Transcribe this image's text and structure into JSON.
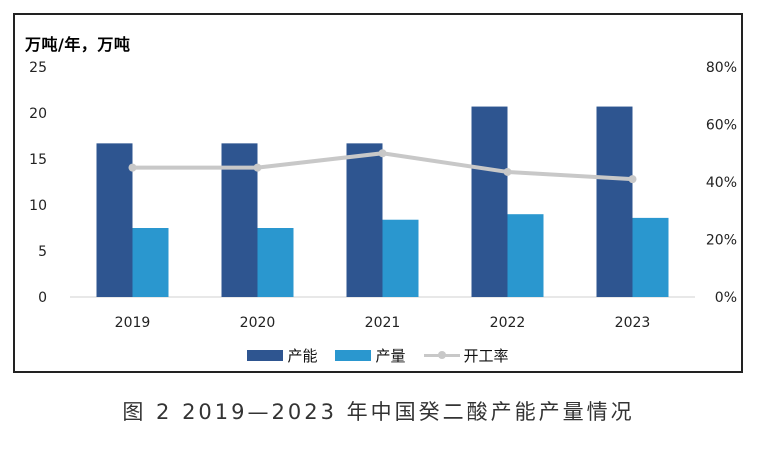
{
  "caption": "图 2  2019—2023 年中国癸二酸产能产量情况",
  "chart_data": {
    "type": "bar",
    "unit_label": "万吨/年，万吨",
    "categories": [
      "2019",
      "2020",
      "2021",
      "2022",
      "2023"
    ],
    "ylim": [
      0,
      25
    ],
    "y_ticks": [
      "0",
      "5",
      "10",
      "15",
      "20",
      "25"
    ],
    "y2lim": [
      0,
      80
    ],
    "y2_ticks": [
      "0%",
      "20%",
      "40%",
      "60%",
      "80%"
    ],
    "grid": false,
    "legend_position": "bottom",
    "series": [
      {
        "name": "产能",
        "type": "bar",
        "axis": "left",
        "color": "#2e5590",
        "values": [
          16.7,
          16.7,
          16.7,
          20.7,
          20.7
        ]
      },
      {
        "name": "产量",
        "type": "bar",
        "axis": "left",
        "color": "#2a97cf",
        "values": [
          7.5,
          7.5,
          8.4,
          9.0,
          8.6
        ]
      },
      {
        "name": "开工率",
        "type": "line",
        "axis": "right",
        "color": "#c8c8c8",
        "values": [
          45,
          45,
          50,
          43.5,
          41
        ]
      }
    ]
  }
}
